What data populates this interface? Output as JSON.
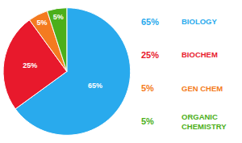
{
  "chart_data": {
    "type": "pie",
    "categories": [
      "BIOLOGY",
      "BIOCHEM",
      "GEN CHEM",
      "ORGANIC\nCHEMISTRY"
    ],
    "values": [
      65,
      25,
      5,
      5
    ],
    "value_labels": [
      "65%",
      "25%",
      "5%",
      "5%"
    ],
    "colors": [
      "#29AAED",
      "#E8192C",
      "#F47B20",
      "#4CAF1A"
    ],
    "data_labels": true,
    "legend": "right"
  }
}
